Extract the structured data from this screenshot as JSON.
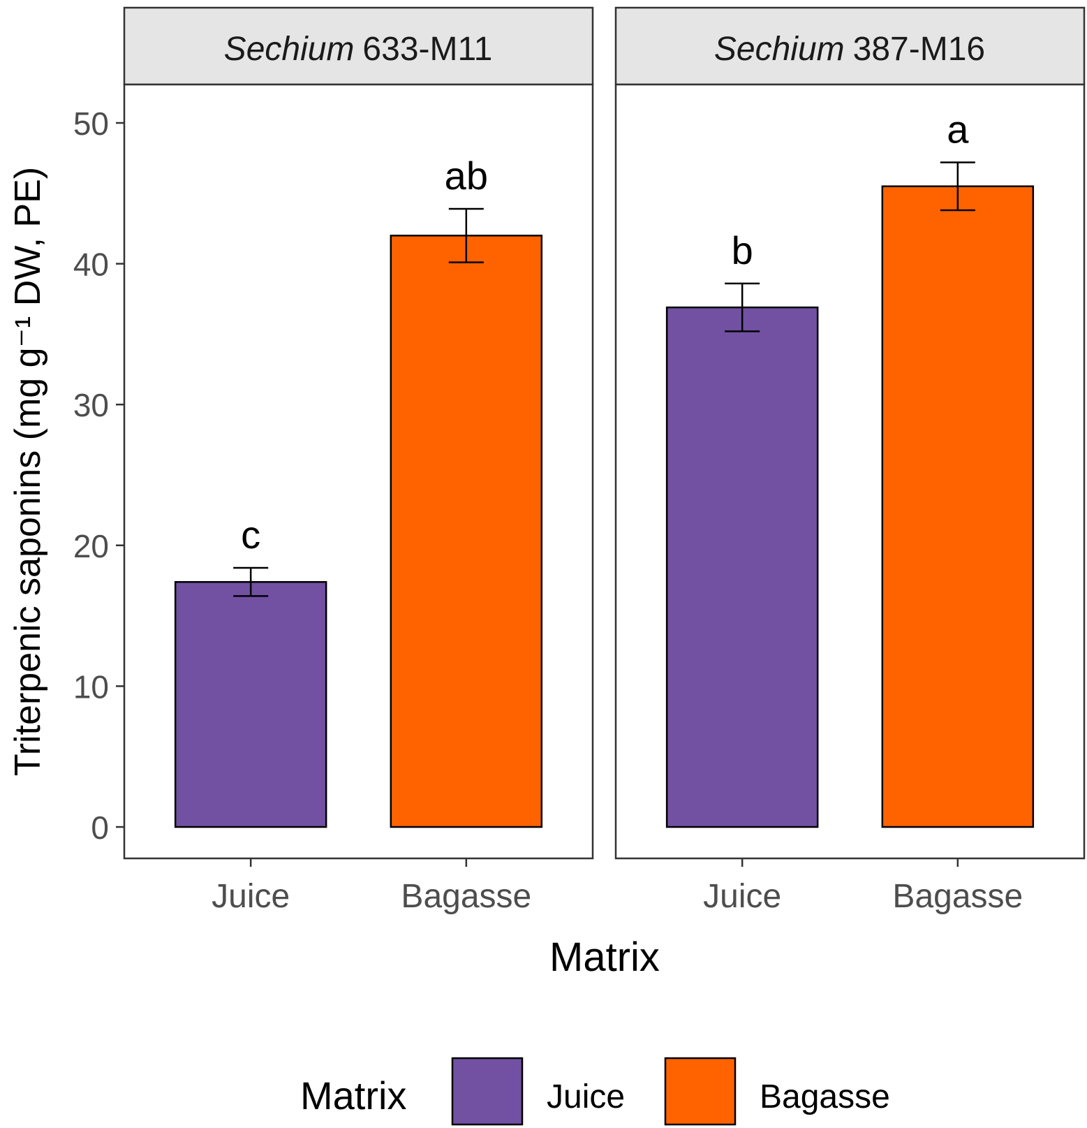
{
  "chart_data": {
    "type": "bar",
    "ylabel": "Triterpenic saponins (mg g⁻¹ DW, PE)",
    "xlabel": "Matrix",
    "ylim": [
      0,
      53
    ],
    "yticks": [
      0,
      10,
      20,
      30,
      40,
      50
    ],
    "categories": [
      "Juice",
      "Bagasse"
    ],
    "colors": {
      "Juice": "#7251a3",
      "Bagasse": "#ff6300"
    },
    "grid": false,
    "panels": [
      {
        "title_italic": "Sechium",
        "title_rest": "633-M11",
        "bars": [
          {
            "category": "Juice",
            "value": 17.4,
            "error": 1.0,
            "letter": "c"
          },
          {
            "category": "Bagasse",
            "value": 42.0,
            "error": 1.9,
            "letter": "ab"
          }
        ]
      },
      {
        "title_italic": "Sechium",
        "title_rest": "387-M16",
        "bars": [
          {
            "category": "Juice",
            "value": 36.9,
            "error": 1.7,
            "letter": "b"
          },
          {
            "category": "Bagasse",
            "value": 45.5,
            "error": 1.7,
            "letter": "a"
          }
        ]
      }
    ],
    "legend": {
      "title": "Matrix",
      "position": "bottom",
      "entries": [
        "Juice",
        "Bagasse"
      ]
    }
  }
}
